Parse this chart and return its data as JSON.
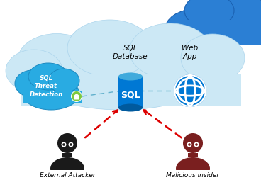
{
  "bg_color": "#ffffff",
  "cloud_light_color": "#cce8f5",
  "cloud_light_edge": "#aad4ec",
  "cloud_dark_color": "#2b7fd4",
  "cloud_dark_edge": "#1a60b0",
  "sql_cloud_color": "#29abe2",
  "sql_cloud_edge": "#1a88c0",
  "sql_db_top_color": "#40aadc",
  "sql_db_body_color": "#0078d4",
  "sql_db_bot_color": "#005a9e",
  "sql_text_color": "#ffffff",
  "label_color": "#000000",
  "web_app_color": "#0078d4",
  "arrow_dashed_color": "#60b0cc",
  "arrow_red_color": "#dd0000",
  "attacker_color": "#1a1a1a",
  "insider_color": "#7a1f1f",
  "lock_color": "#7dc940",
  "title_db": "SQL\nDatabase",
  "title_webapp": "Web\nApp",
  "label_sql_threat": "SQL\nThreat\nDetection",
  "label_attacker": "External Attacker",
  "label_insider": "Malicious insider",
  "figw": 3.68,
  "figh": 2.64,
  "dpi": 100
}
